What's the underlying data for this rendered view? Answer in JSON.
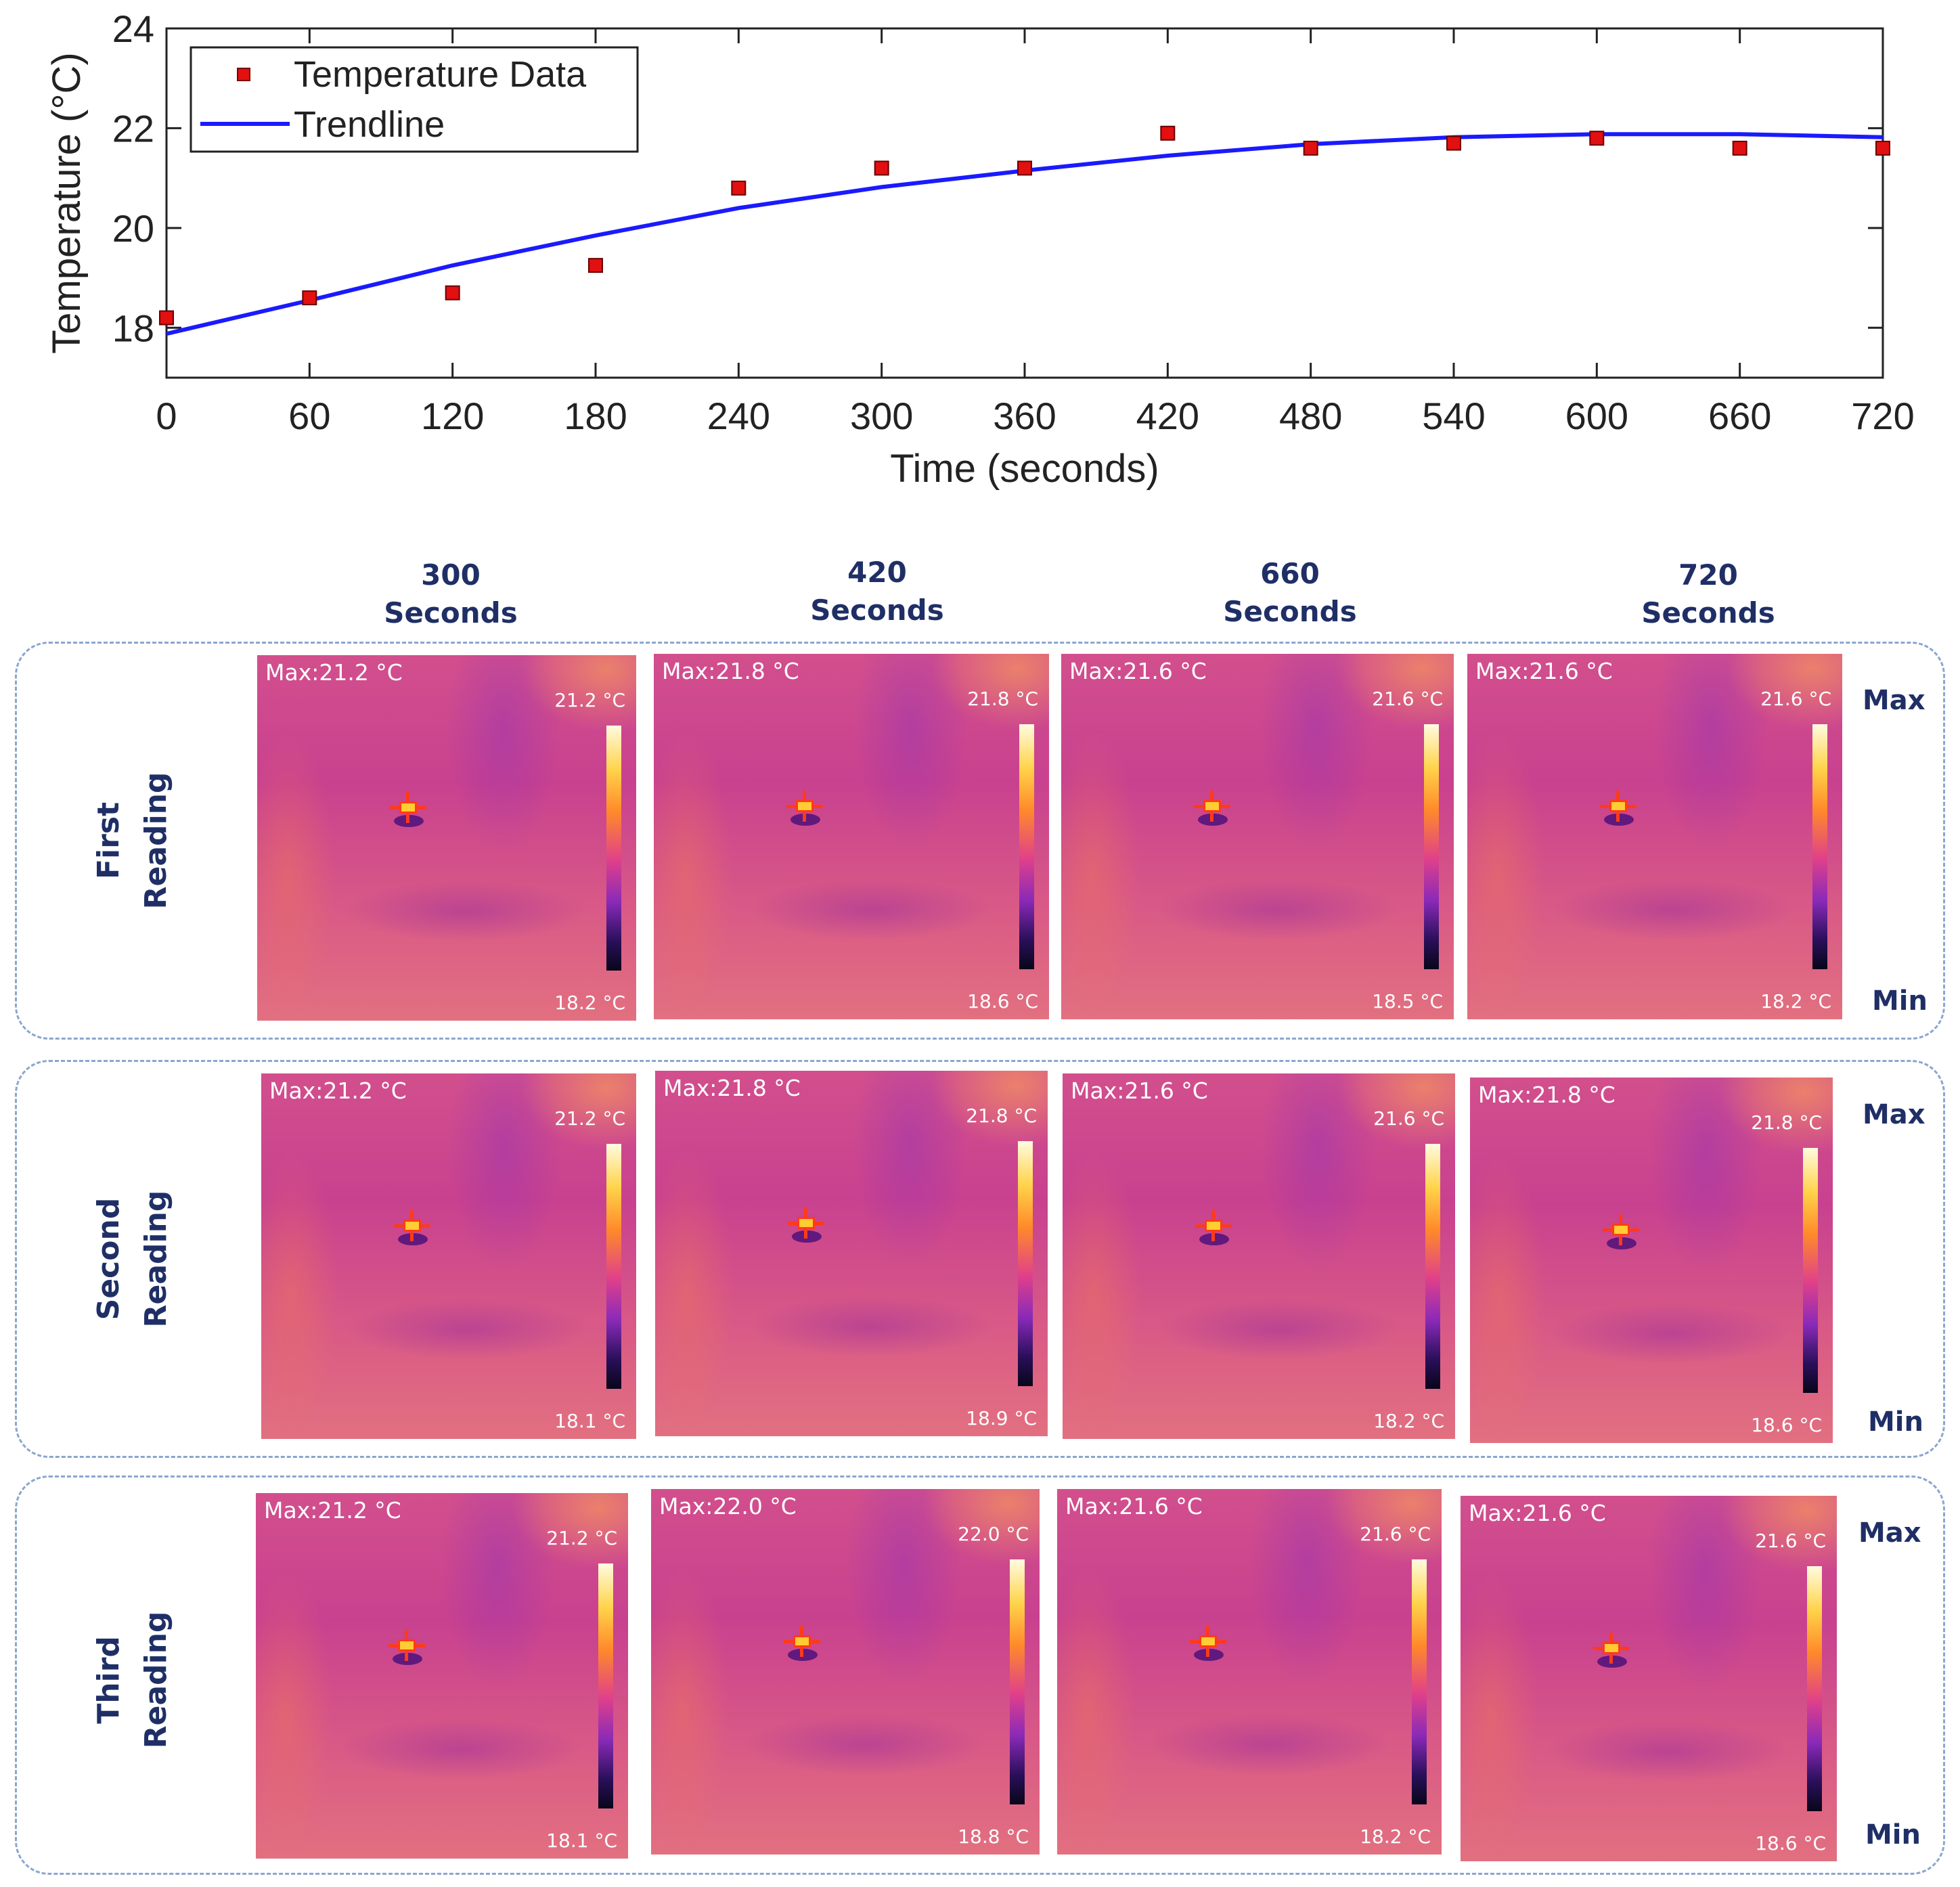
{
  "chart_data": {
    "type": "scatter",
    "xlabel": "Time (seconds)",
    "ylabel": "Temperature (°C)",
    "xlim": [
      0,
      720
    ],
    "ylim": [
      17,
      24
    ],
    "xticks": [
      "0",
      "60",
      "120",
      "180",
      "240",
      "300",
      "360",
      "420",
      "480",
      "540",
      "600",
      "660",
      "720"
    ],
    "yticks": [
      "18",
      "20",
      "22",
      "24"
    ],
    "legend": {
      "position": "top-left",
      "entries": [
        "Temperature Data",
        "Trendline"
      ]
    },
    "series": [
      {
        "name": "Temperature Data",
        "kind": "markers",
        "color": "#e21010",
        "x": [
          0,
          60,
          120,
          180,
          240,
          300,
          360,
          420,
          480,
          540,
          600,
          660,
          720
        ],
        "y": [
          18.2,
          18.6,
          18.7,
          19.25,
          20.8,
          21.2,
          21.2,
          21.9,
          21.6,
          21.7,
          21.8,
          21.6,
          21.6
        ]
      },
      {
        "name": "Trendline",
        "kind": "line",
        "color": "#1a1aff",
        "x": [
          0,
          60,
          120,
          180,
          240,
          300,
          360,
          420,
          480,
          540,
          600,
          660,
          720
        ],
        "y": [
          17.88,
          18.55,
          19.25,
          19.85,
          20.4,
          20.82,
          21.15,
          21.45,
          21.68,
          21.82,
          21.88,
          21.88,
          21.82
        ]
      }
    ]
  },
  "thermal_grid": {
    "columns": [
      {
        "value": "300",
        "unit": "Seconds"
      },
      {
        "value": "420",
        "unit": "Seconds"
      },
      {
        "value": "660",
        "unit": "Seconds"
      },
      {
        "value": "720",
        "unit": "Seconds"
      }
    ],
    "scale_max_label": "Max",
    "scale_min_label": "Min",
    "rows": [
      {
        "label_line1": "First",
        "label_line2": "Reading",
        "images": [
          {
            "max_text": "Max:21.2 °C",
            "scale_top": "21.2 °C",
            "scale_bottom": "18.2 °C"
          },
          {
            "max_text": "Max:21.8 °C",
            "scale_top": "21.8 °C",
            "scale_bottom": "18.6 °C"
          },
          {
            "max_text": "Max:21.6 °C",
            "scale_top": "21.6 °C",
            "scale_bottom": "18.5 °C"
          },
          {
            "max_text": "Max:21.6 °C",
            "scale_top": "21.6 °C",
            "scale_bottom": "18.2 °C"
          }
        ]
      },
      {
        "label_line1": "Second",
        "label_line2": "Reading",
        "images": [
          {
            "max_text": "Max:21.2 °C",
            "scale_top": "21.2 °C",
            "scale_bottom": "18.1 °C"
          },
          {
            "max_text": "Max:21.8 °C",
            "scale_top": "21.8 °C",
            "scale_bottom": "18.9 °C"
          },
          {
            "max_text": "Max:21.6 °C",
            "scale_top": "21.6 °C",
            "scale_bottom": "18.2 °C"
          },
          {
            "max_text": "Max:21.8 °C",
            "scale_top": "21.8 °C",
            "scale_bottom": "18.6 °C"
          }
        ]
      },
      {
        "label_line1": "Third",
        "label_line2": "Reading",
        "images": [
          {
            "max_text": "Max:21.2 °C",
            "scale_top": "21.2 °C",
            "scale_bottom": "18.1 °C"
          },
          {
            "max_text": "Max:22.0 °C",
            "scale_top": "22.0 °C",
            "scale_bottom": "18.8 °C"
          },
          {
            "max_text": "Max:21.6 °C",
            "scale_top": "21.6 °C",
            "scale_bottom": "18.2 °C"
          },
          {
            "max_text": "Max:21.6 °C",
            "scale_top": "21.6 °C",
            "scale_bottom": "18.6 °C"
          }
        ]
      }
    ]
  }
}
